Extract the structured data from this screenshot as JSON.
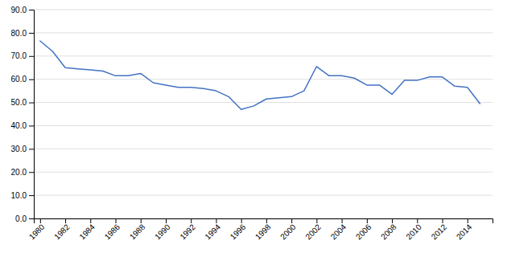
{
  "chart_data": {
    "type": "line",
    "x": [
      1980,
      1981,
      1982,
      1983,
      1984,
      1985,
      1986,
      1987,
      1988,
      1989,
      1990,
      1991,
      1992,
      1993,
      1994,
      1995,
      1996,
      1997,
      1998,
      1999,
      2000,
      2001,
      2002,
      2003,
      2004,
      2005,
      2006,
      2007,
      2008,
      2009,
      2010,
      2011,
      2012,
      2013,
      2014,
      2015
    ],
    "values": [
      76.5,
      72.0,
      65.0,
      64.5,
      64.0,
      63.5,
      61.5,
      61.5,
      62.5,
      58.5,
      57.5,
      56.5,
      56.5,
      56.0,
      55.0,
      52.5,
      47.0,
      48.5,
      51.5,
      52.0,
      52.5,
      55.0,
      65.5,
      61.5,
      61.5,
      60.5,
      57.5,
      57.5,
      53.5,
      59.5,
      59.5,
      61.0,
      61.0,
      57.0,
      56.5,
      49.5
    ],
    "color": "#4472C4",
    "xlim": [
      1979.5,
      2016.0
    ],
    "xticks": [
      1980,
      1982,
      1984,
      1986,
      1988,
      1990,
      1992,
      1994,
      1996,
      1998,
      2000,
      2002,
      2004,
      2006,
      2008,
      2010,
      2012,
      2014
    ],
    "ylim": [
      0.0,
      90.0
    ],
    "yticks": [
      {
        "value": 0.0,
        "label": "0.0"
      },
      {
        "value": 10.0,
        "label": "10.0"
      },
      {
        "value": 20.0,
        "label": "20.0"
      },
      {
        "value": 30.0,
        "label": "30.0"
      },
      {
        "value": 40.0,
        "label": "40.0"
      },
      {
        "value": 50.0,
        "label": "50.0"
      },
      {
        "value": 60.0,
        "label": "60.0"
      },
      {
        "value": 70.0,
        "label": "70.0"
      },
      {
        "value": 80.0,
        "label": "80.0"
      },
      {
        "value": 90.0,
        "label": "90.0"
      }
    ],
    "grid": true
  }
}
